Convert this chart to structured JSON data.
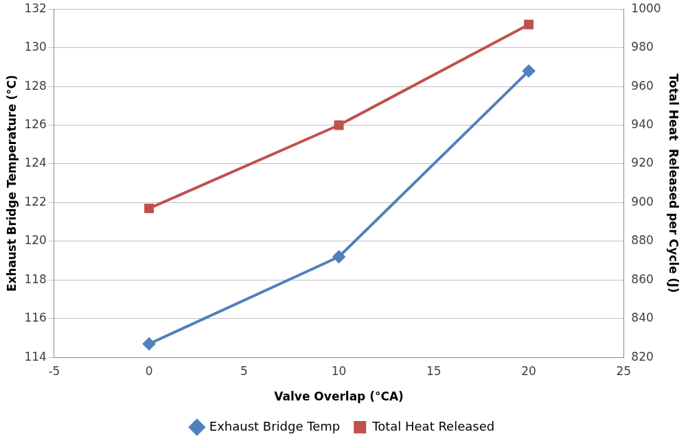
{
  "chart_data": {
    "type": "line",
    "xlabel": "Valve Overlap (°CA)",
    "ylabel": "Exhaust Bridge Temperature (°C)",
    "y2label": "Total Heat  Released per Cycle (J)",
    "x": [
      0,
      10,
      20
    ],
    "xlim": [
      -5,
      25
    ],
    "xticks": [
      -5,
      0,
      5,
      10,
      15,
      20,
      25
    ],
    "ylim": [
      114,
      132
    ],
    "yticks": [
      114,
      116,
      118,
      120,
      122,
      124,
      126,
      128,
      130,
      132
    ],
    "y2lim": [
      820,
      1000
    ],
    "y2ticks": [
      820,
      840,
      860,
      880,
      900,
      920,
      940,
      960,
      980,
      1000
    ],
    "grid": "y",
    "legend": "bottom",
    "line_style": "solid",
    "series": [
      {
        "name": "Exhaust Bridge Temp",
        "color": "#4f81bd",
        "values": [
          114.7,
          119.2,
          128.8
        ],
        "marker": "diamond"
      },
      {
        "name": "Total Heat Released",
        "color": "#c0504d",
        "values": [
          897,
          940,
          992
        ],
        "axis": "y2",
        "marker": "square"
      }
    ]
  }
}
